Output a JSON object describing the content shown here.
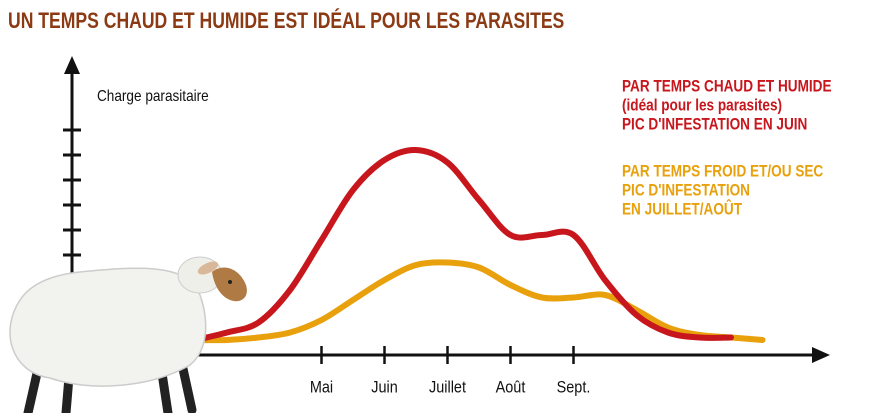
{
  "chart_data": {
    "type": "line",
    "title": "UN TEMPS CHAUD ET HUMIDE EST IDÉAL POUR LES PARASITES",
    "y_label": "Charge parasitaire",
    "categories": [
      null,
      null,
      null,
      null,
      "Mai",
      null,
      "Juin",
      null,
      "Juillet",
      null,
      "Août",
      null,
      "Sept.",
      null,
      null,
      null,
      null,
      null,
      null
    ],
    "ylim": [
      0,
      12
    ],
    "yticks": [
      4,
      5,
      6,
      7,
      8,
      9
    ],
    "series": [
      {
        "name": "PAR TEMPS CHAUD ET HUMIDE",
        "description": [
          "(idéal pour les parasites)",
          "PIC D'INFESTATION EN JUIN"
        ],
        "color": "#c8161d",
        "values": [
          0.6,
          0.9,
          1.3,
          2.6,
          4.6,
          6.6,
          7.8,
          8.2,
          7.7,
          6.2,
          4.8,
          4.8,
          4.8,
          3.0,
          1.6,
          0.9,
          0.7,
          0.7,
          null
        ]
      },
      {
        "name": "PAR TEMPS FROID ET/OU SEC",
        "description": [
          "PIC D'INFESTATION",
          "EN JUILLET/AOÛT"
        ],
        "color": "#e8a10c",
        "values": [
          0.6,
          0.6,
          0.7,
          0.9,
          1.4,
          2.2,
          3.0,
          3.6,
          3.7,
          3.5,
          2.8,
          2.3,
          2.3,
          2.4,
          1.8,
          1.1,
          0.8,
          0.7,
          0.6
        ]
      }
    ]
  }
}
